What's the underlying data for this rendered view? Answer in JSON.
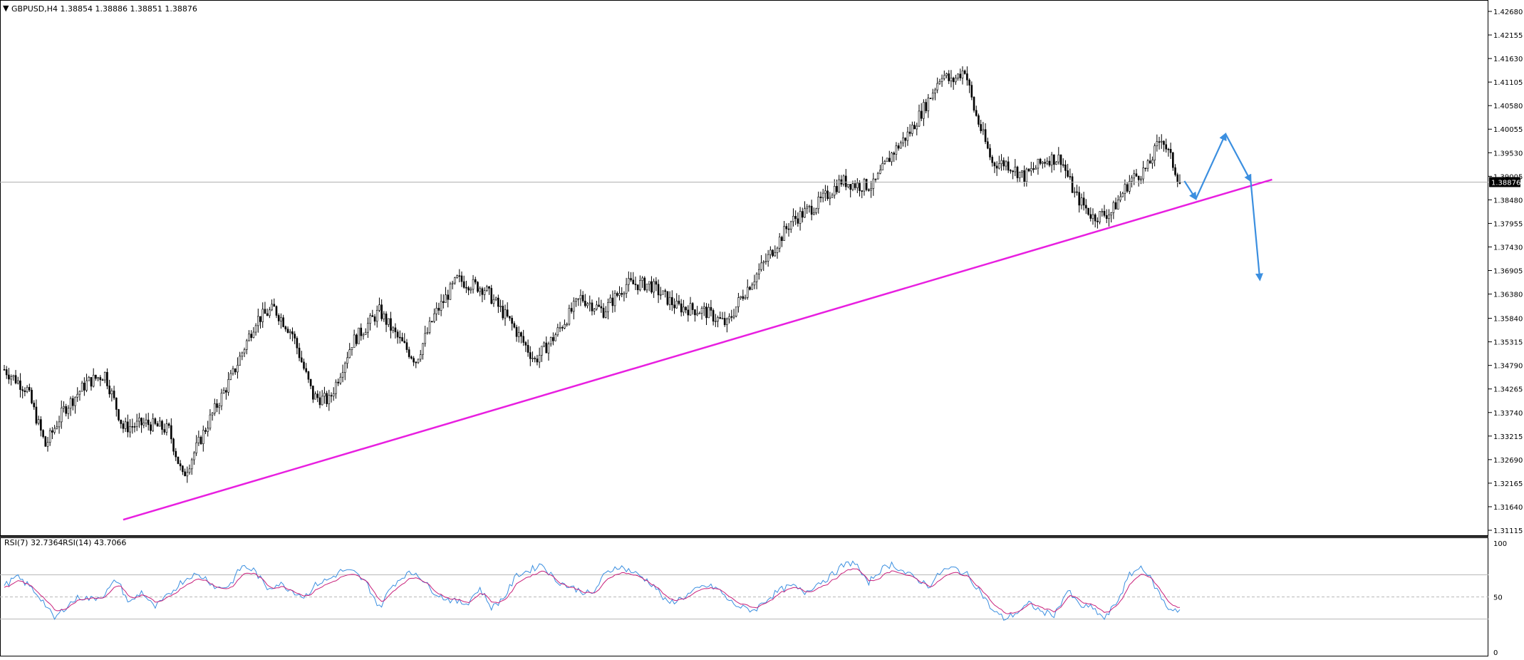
{
  "window": {
    "symbol_header": "GBPUSD,H4  1.38854 1.38886 1.38851 1.38876",
    "current_price_badge": "1.38876"
  },
  "colors": {
    "candle": "#000000",
    "trendline": "#e81fe0",
    "projection_arrow": "#3b8fe0",
    "rsi7": "#3b8fe0",
    "rsi14": "#c8207a",
    "price_line": "#b0b0b0"
  },
  "chart_data": [
    {
      "type": "candlestick",
      "title": "GBPUSD,H4",
      "ohlc_header": [
        "1.38854",
        "1.38886",
        "1.38851",
        "1.38876"
      ],
      "ylim": [
        1.31115,
        1.4268
      ],
      "y_ticks": [
        "1.42680",
        "1.42155",
        "1.41630",
        "1.41105",
        "1.40580",
        "1.40055",
        "1.39530",
        "1.39005",
        "1.38480",
        "1.37955",
        "1.37430",
        "1.36905",
        "1.36380",
        "1.35840",
        "1.35315",
        "1.34790",
        "1.34265",
        "1.33740",
        "1.33215",
        "1.32690",
        "1.32165",
        "1.31640",
        "1.31115"
      ],
      "last_price": 1.38876,
      "series_anchors": [
        {
          "bar": 0,
          "close": 1.347
        },
        {
          "bar": 10,
          "close": 1.3425
        },
        {
          "bar": 18,
          "close": 1.33
        },
        {
          "bar": 26,
          "close": 1.338
        },
        {
          "bar": 36,
          "close": 1.344
        },
        {
          "bar": 44,
          "close": 1.346
        },
        {
          "bar": 52,
          "close": 1.334
        },
        {
          "bar": 62,
          "close": 1.335
        },
        {
          "bar": 72,
          "close": 1.3335
        },
        {
          "bar": 78,
          "close": 1.323
        },
        {
          "bar": 90,
          "close": 1.336
        },
        {
          "bar": 100,
          "close": 1.346
        },
        {
          "bar": 110,
          "close": 1.358
        },
        {
          "bar": 118,
          "close": 1.3605
        },
        {
          "bar": 126,
          "close": 1.355
        },
        {
          "bar": 135,
          "close": 1.341
        },
        {
          "bar": 142,
          "close": 1.34
        },
        {
          "bar": 152,
          "close": 1.353
        },
        {
          "bar": 164,
          "close": 1.36
        },
        {
          "bar": 172,
          "close": 1.354
        },
        {
          "bar": 180,
          "close": 1.349
        },
        {
          "bar": 188,
          "close": 1.359
        },
        {
          "bar": 198,
          "close": 1.367
        },
        {
          "bar": 210,
          "close": 1.365
        },
        {
          "bar": 222,
          "close": 1.357
        },
        {
          "bar": 232,
          "close": 1.349
        },
        {
          "bar": 240,
          "close": 1.354
        },
        {
          "bar": 252,
          "close": 1.363
        },
        {
          "bar": 262,
          "close": 1.36
        },
        {
          "bar": 272,
          "close": 1.366
        },
        {
          "bar": 282,
          "close": 1.366
        },
        {
          "bar": 294,
          "close": 1.361
        },
        {
          "bar": 306,
          "close": 1.36
        },
        {
          "bar": 316,
          "close": 1.357
        },
        {
          "bar": 322,
          "close": 1.363
        },
        {
          "bar": 334,
          "close": 1.372
        },
        {
          "bar": 344,
          "close": 1.38
        },
        {
          "bar": 356,
          "close": 1.384
        },
        {
          "bar": 366,
          "close": 1.389
        },
        {
          "bar": 374,
          "close": 1.388
        },
        {
          "bar": 380,
          "close": 1.388
        },
        {
          "bar": 388,
          "close": 1.395
        },
        {
          "bar": 396,
          "close": 1.4
        },
        {
          "bar": 404,
          "close": 1.407
        },
        {
          "bar": 410,
          "close": 1.413
        },
        {
          "bar": 414,
          "close": 1.411
        },
        {
          "bar": 420,
          "close": 1.414
        },
        {
          "bar": 424,
          "close": 1.405
        },
        {
          "bar": 432,
          "close": 1.393
        },
        {
          "bar": 438,
          "close": 1.393
        },
        {
          "bar": 446,
          "close": 1.39
        },
        {
          "bar": 456,
          "close": 1.394
        },
        {
          "bar": 462,
          "close": 1.394
        },
        {
          "bar": 468,
          "close": 1.386
        },
        {
          "bar": 476,
          "close": 1.381
        },
        {
          "bar": 484,
          "close": 1.382
        },
        {
          "bar": 492,
          "close": 1.389
        },
        {
          "bar": 500,
          "close": 1.392
        },
        {
          "bar": 506,
          "close": 1.399
        },
        {
          "bar": 510,
          "close": 1.394
        },
        {
          "bar": 514,
          "close": 1.3888
        }
      ],
      "trendline": {
        "from": {
          "bar": 52,
          "price": 1.3135
        },
        "to": {
          "bar": 545,
          "price": 1.389
        }
      },
      "projection": [
        {
          "bar": 516,
          "price": 1.389
        },
        {
          "bar": 521,
          "price": 1.385
        },
        {
          "bar": 534,
          "price": 1.3995
        },
        {
          "bar": 545,
          "price": 1.389
        },
        {
          "bar": 549,
          "price": 1.367
        }
      ]
    },
    {
      "type": "line",
      "title": "RSI",
      "legend": [
        "RSI(7) 32.7364",
        "RSI(14) 43.7066"
      ],
      "series": [
        {
          "name": "RSI(7)",
          "value": 32.7364
        },
        {
          "name": "RSI(14)",
          "value": 43.7066
        }
      ],
      "ylim": [
        0,
        100
      ],
      "y_ticks": [
        "100",
        "50",
        "0"
      ],
      "levels": [
        30,
        50,
        70
      ],
      "rsi7_anchors": [
        60,
        68,
        60,
        48,
        30,
        42,
        50,
        48,
        52,
        66,
        44,
        55,
        40,
        50,
        62,
        70,
        68,
        58,
        60,
        78,
        74,
        58,
        62,
        56,
        50,
        62,
        66,
        74,
        72,
        62,
        40,
        60,
        70,
        72,
        58,
        50,
        46,
        44,
        58,
        40,
        50,
        70,
        74,
        80,
        66,
        60,
        56,
        52,
        70,
        78,
        74,
        68,
        60,
        44,
        48,
        54,
        60,
        58,
        46,
        40,
        38,
        48,
        56,
        60,
        54,
        62,
        68,
        78,
        82,
        62,
        74,
        80,
        72,
        66,
        60,
        74,
        76,
        70,
        56,
        38,
        30,
        36,
        44,
        36,
        34,
        56,
        42,
        40,
        30,
        46,
        70,
        78,
        60,
        40,
        38
      ]
    }
  ]
}
